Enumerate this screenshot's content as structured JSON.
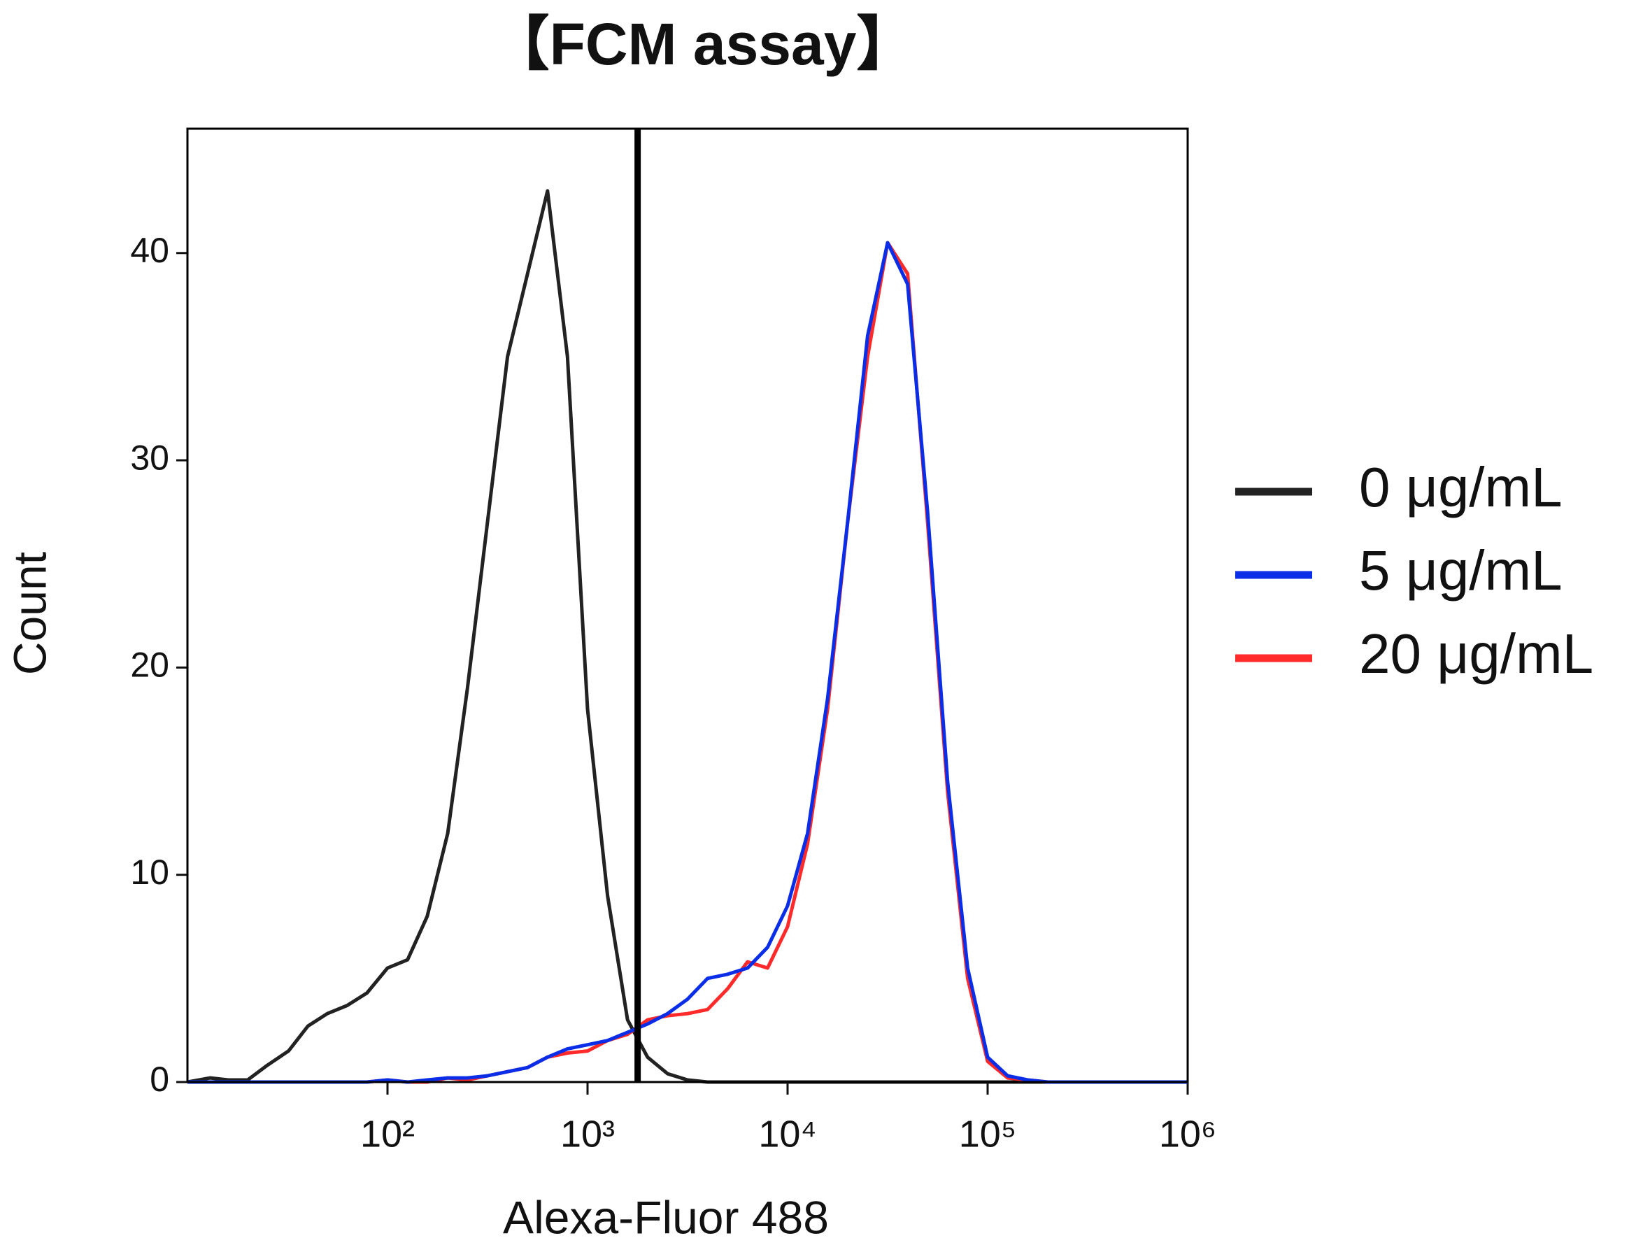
{
  "chart_data": {
    "type": "line",
    "title": "【FCM assay】",
    "x_label": "Alexa-Fluor 488",
    "y_label": "Count",
    "x_scale": "log",
    "x": [
      10,
      13,
      16,
      20,
      25,
      32,
      40,
      50,
      63,
      79,
      100,
      126,
      158,
      200,
      251,
      316,
      398,
      501,
      631,
      794,
      1000,
      1259,
      1585,
      1995,
      2512,
      3162,
      3981,
      5012,
      6310,
      7943,
      10000,
      12589,
      15849,
      19953,
      25119,
      31623,
      39811,
      50119,
      63096,
      79433,
      100000,
      125893,
      158489,
      199526,
      251189,
      316228,
      398107,
      501187,
      630957,
      794328,
      1000000
    ],
    "series": [
      {
        "name": "0 μg/mL",
        "color": "#222222",
        "values": [
          0,
          0.2,
          0.1,
          0.1,
          0.8,
          1.5,
          2.7,
          3.3,
          3.7,
          4.3,
          5.5,
          5.9,
          8,
          12,
          19,
          27,
          35,
          39,
          43,
          35,
          18,
          9,
          3,
          1.2,
          0.4,
          0.1,
          0,
          0,
          0,
          0,
          0,
          0,
          0,
          0,
          0,
          0,
          0,
          0,
          0,
          0,
          0,
          0,
          0,
          0,
          0,
          0,
          0,
          0,
          0,
          0,
          0
        ]
      },
      {
        "name": "5 μg/mL",
        "color": "#0a2ee8",
        "values": [
          0,
          0,
          0,
          0,
          0,
          0,
          0,
          0,
          0,
          0,
          0.1,
          0,
          0.1,
          0.2,
          0.2,
          0.3,
          0.5,
          0.7,
          1.2,
          1.6,
          1.8,
          2,
          2.4,
          2.8,
          3.3,
          4,
          5,
          5.2,
          5.5,
          6.5,
          8.5,
          12,
          18.5,
          27,
          36,
          40.5,
          38.5,
          27.5,
          14.5,
          5.5,
          1.2,
          0.3,
          0.1,
          0,
          0,
          0,
          0,
          0,
          0,
          0,
          0
        ]
      },
      {
        "name": "20 μg/mL",
        "color": "#ff2a2a",
        "values": [
          0,
          0,
          0,
          0,
          0,
          0,
          0,
          0,
          0,
          0,
          0.1,
          0,
          0,
          0.2,
          0.1,
          0.3,
          0.5,
          0.7,
          1.2,
          1.4,
          1.5,
          2,
          2.3,
          3,
          3.2,
          3.3,
          3.5,
          4.5,
          5.8,
          5.5,
          7.5,
          11.5,
          18,
          27,
          35,
          40.5,
          39,
          27,
          14,
          5,
          1,
          0.2,
          0.1,
          0,
          0,
          0,
          0,
          0,
          0,
          0,
          0
        ]
      }
    ],
    "gate_x": 1780,
    "xlim": [
      10,
      1000000
    ],
    "xticks": [
      {
        "value": 100,
        "label": "10²"
      },
      {
        "value": 1000,
        "label": "10³"
      },
      {
        "value": 10000,
        "label": "10⁴"
      },
      {
        "value": 100000,
        "label": "10⁵"
      },
      {
        "value": 1000000,
        "label": "10⁶"
      }
    ],
    "ylim": [
      0,
      46
    ],
    "yticks": [
      0,
      10,
      20,
      30,
      40
    ],
    "grid": false,
    "legend": "right"
  }
}
